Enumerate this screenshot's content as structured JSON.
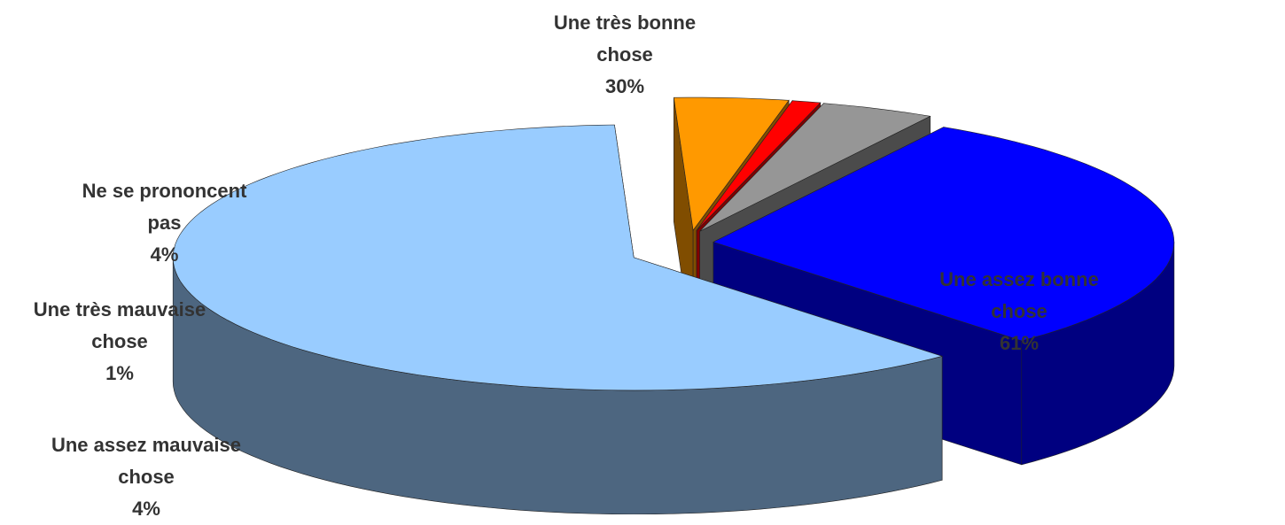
{
  "chart_data": {
    "type": "pie",
    "categories": [
      "Une très bonne chose",
      "Une assez bonne chose",
      "Une assez mauvaise chose",
      "Une très mauvaise chose",
      "Ne se prononcent pas"
    ],
    "values": [
      30,
      61,
      4,
      1,
      4
    ],
    "value_labels": [
      "30%",
      "61%",
      "4%",
      "1%",
      "4%"
    ],
    "colors": [
      "#0000ff",
      "#99ccff",
      "#ff9900",
      "#ff0000",
      "#969696"
    ]
  }
}
